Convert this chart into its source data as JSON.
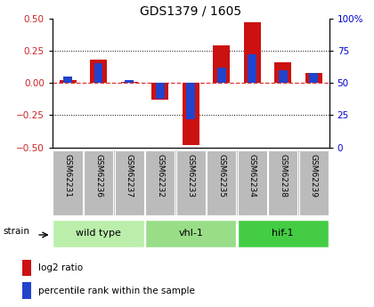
{
  "title": "GDS1379 / 1605",
  "samples": [
    "GSM62231",
    "GSM62236",
    "GSM62237",
    "GSM62232",
    "GSM62233",
    "GSM62235",
    "GSM62234",
    "GSM62238",
    "GSM62239"
  ],
  "log2_ratio": [
    0.02,
    0.18,
    0.01,
    -0.13,
    -0.48,
    0.29,
    0.47,
    0.16,
    0.08
  ],
  "percentile_rank": [
    55,
    65,
    52,
    38,
    22,
    62,
    72,
    60,
    58
  ],
  "groups": [
    {
      "label": "wild type",
      "start": 0,
      "end": 3,
      "color": "#bbeeaa"
    },
    {
      "label": "vhl-1",
      "start": 3,
      "end": 6,
      "color": "#99dd88"
    },
    {
      "label": "hif-1",
      "start": 6,
      "end": 9,
      "color": "#44cc44"
    }
  ],
  "ylim_left": [
    -0.5,
    0.5
  ],
  "ylim_right": [
    0,
    100
  ],
  "yticks_left": [
    -0.5,
    -0.25,
    0.0,
    0.25,
    0.5
  ],
  "yticks_right": [
    0,
    25,
    50,
    75,
    100
  ],
  "bar_color_red": "#cc1111",
  "bar_color_blue": "#2244cc",
  "zero_line_color": "#dd3333",
  "grid_color": "#000000",
  "tick_label_color_left": "#cc2222",
  "tick_label_color_right": "#0000cc",
  "bg_xtick": "#bbbbbb",
  "strain_label": "strain",
  "legend_red": "log2 ratio",
  "legend_blue": "percentile rank within the sample",
  "fig_bg": "#f0f0f0"
}
